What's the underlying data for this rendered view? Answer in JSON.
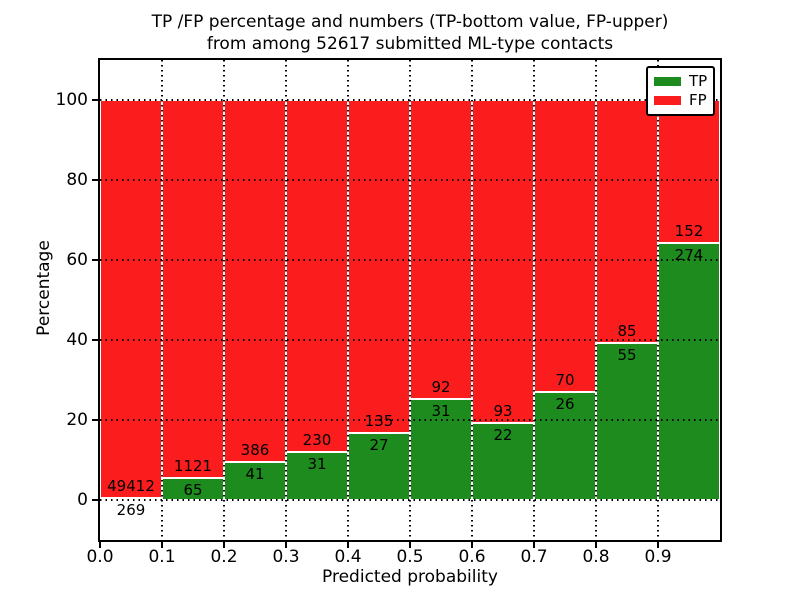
{
  "title": {
    "line1": "TP /FP percentage and numbers (TP-bottom value, FP-upper)",
    "line2": "from among 52617 submitted ML-type contacts"
  },
  "axes": {
    "xlabel": "Predicted probability",
    "ylabel": "Percentage",
    "xtick_labels": [
      "0.0",
      "0.1",
      "0.2",
      "0.3",
      "0.4",
      "0.5",
      "0.6",
      "0.7",
      "0.8",
      "0.9"
    ],
    "ytick_labels": [
      "0",
      "20",
      "40",
      "60",
      "80",
      "100"
    ],
    "xlim": [
      0.0,
      1.0
    ],
    "ylim": [
      -10,
      110
    ],
    "grid_style": "dotted"
  },
  "legend": {
    "position": "upper-right",
    "items": [
      {
        "label": "TP",
        "color": "#1e8b1e"
      },
      {
        "label": "FP",
        "color": "#fb1d1d"
      }
    ]
  },
  "chart_data": {
    "type": "bar",
    "stacked": true,
    "total_contacts": 52617,
    "bin_start": [
      0.0,
      0.1,
      0.2,
      0.3,
      0.4,
      0.5,
      0.6,
      0.7,
      0.8,
      0.9
    ],
    "bin_width": 0.1,
    "series": [
      {
        "name": "TP",
        "color": "#1e8b1e",
        "counts": [
          269,
          65,
          41,
          31,
          27,
          31,
          22,
          26,
          55,
          274
        ]
      },
      {
        "name": "FP",
        "color": "#fb1d1d",
        "counts": [
          49412,
          1121,
          386,
          230,
          135,
          92,
          93,
          70,
          85,
          152
        ]
      }
    ],
    "tp_percent": [
      0.54,
      5.48,
      9.6,
      11.88,
      16.67,
      25.2,
      19.13,
      27.08,
      39.29,
      64.32
    ],
    "xlabel": "Predicted probability",
    "ylabel": "Percentage",
    "ylim": [
      -10,
      110
    ],
    "grid": "dotted, drawn above bars",
    "bar_edge_color": "#ffffff"
  }
}
